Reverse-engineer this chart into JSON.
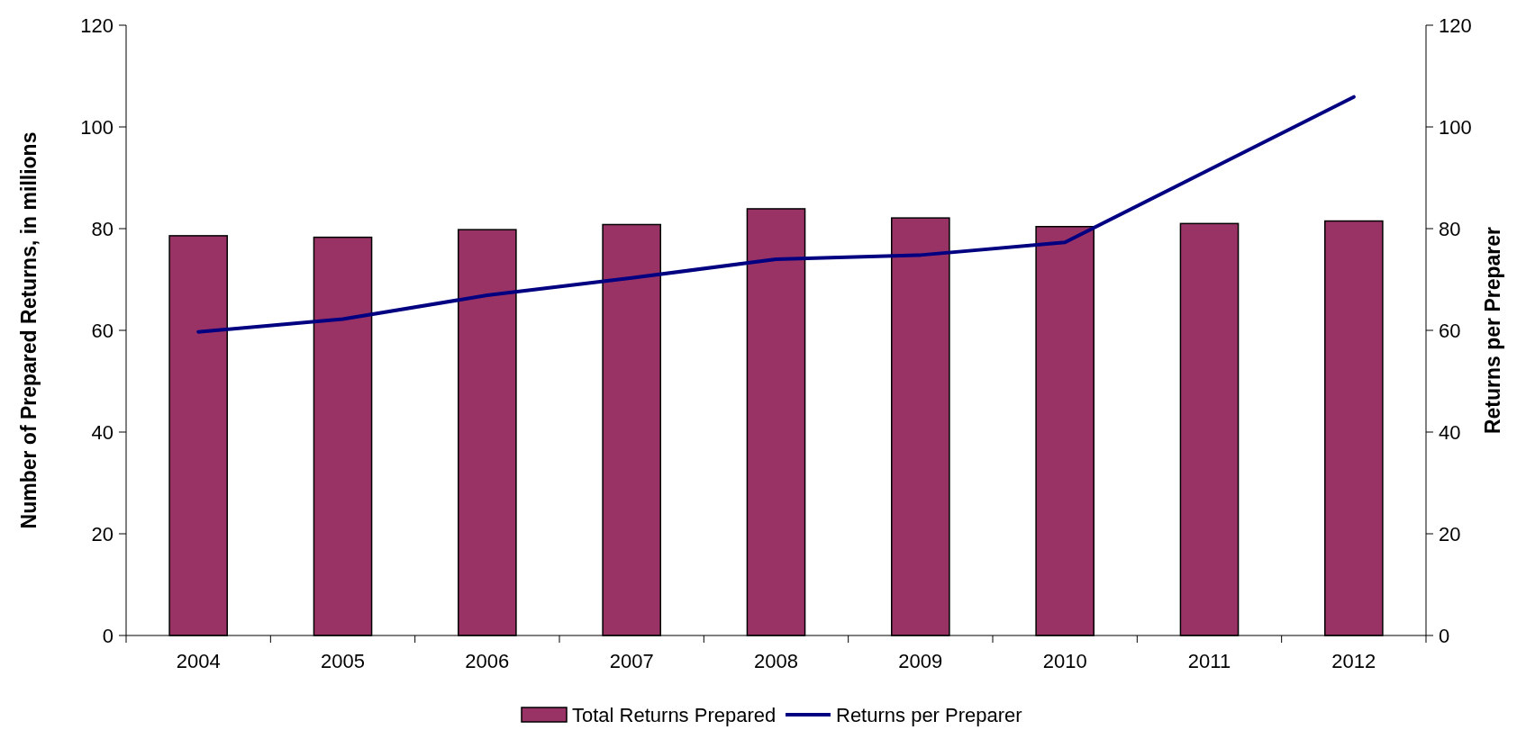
{
  "chart_data": {
    "type": "bar",
    "ylabel": "Number of Prepared Returns, in millions",
    "y2label": "Returns per Preparer",
    "categories": [
      "2004",
      "2005",
      "2006",
      "2007",
      "2008",
      "2009",
      "2010",
      "2011",
      "2012"
    ],
    "series": [
      {
        "name": "Total Returns Prepared",
        "color": "#993366",
        "values": [
          78.6,
          78.3,
          79.8,
          80.8,
          83.9,
          82.1,
          80.4,
          81.0,
          81.5
        ]
      },
      {
        "name": "Returns per Preparer",
        "type": "line",
        "axis": "y2",
        "color": "#000080",
        "values": [
          59.7,
          62.2,
          66.9,
          70.3,
          74.0,
          74.8,
          77.3,
          91.6,
          105.9
        ]
      }
    ],
    "ylim": [
      0,
      120
    ],
    "yticks": [
      0,
      20,
      40,
      60,
      80,
      100,
      120
    ],
    "y2lim": [
      0,
      120
    ],
    "y2ticks": [
      0,
      20,
      40,
      60,
      80,
      100,
      120
    ],
    "grid": false,
    "legend": "bottom",
    "marker": "none",
    "line_style": "solid"
  }
}
